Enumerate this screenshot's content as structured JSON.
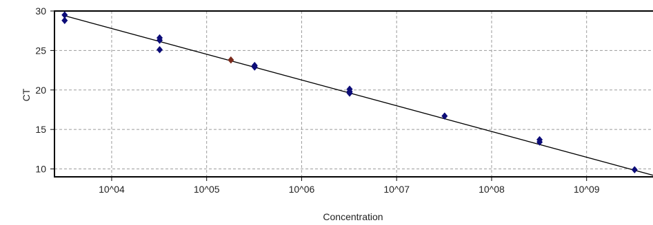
{
  "chart_data": {
    "type": "scatter",
    "xlabel": "Concentration",
    "ylabel": "CT",
    "x_scale": "log10",
    "xlim": [
      2500,
      5000000000
    ],
    "ylim": [
      9,
      30
    ],
    "grid": true,
    "x_ticks": [
      10000,
      100000,
      1000000,
      10000000,
      100000000,
      1000000000
    ],
    "x_tick_labels": [
      "10^04",
      "10^05",
      "10^06",
      "10^07",
      "10^08",
      "10^09"
    ],
    "y_ticks": [
      10,
      15,
      20,
      25,
      30
    ],
    "y_tick_labels": [
      "10",
      "15",
      "20",
      "25",
      "30"
    ],
    "series": [
      {
        "color": "#0c0c78",
        "points": [
          {
            "x": 3200,
            "y": 29.5
          },
          {
            "x": 3200,
            "y": 28.8
          },
          {
            "x": 32000,
            "y": 26.6
          },
          {
            "x": 32000,
            "y": 26.3
          },
          {
            "x": 32000,
            "y": 25.1
          },
          {
            "x": 320000,
            "y": 23.1
          },
          {
            "x": 320000,
            "y": 22.9
          },
          {
            "x": 3200000,
            "y": 20.1
          },
          {
            "x": 3200000,
            "y": 19.8
          },
          {
            "x": 3200000,
            "y": 19.6
          },
          {
            "x": 32000000,
            "y": 16.7
          },
          {
            "x": 320000000,
            "y": 13.7
          },
          {
            "x": 320000000,
            "y": 13.4
          },
          {
            "x": 3200000000,
            "y": 9.9
          }
        ]
      },
      {
        "color": "#7a2a1c",
        "points": [
          {
            "x": 180000,
            "y": 23.8
          }
        ]
      }
    ],
    "fit_line": {
      "color": "#000000",
      "points": [
        {
          "x": 3200,
          "y": 29.4
        },
        {
          "x": 5000000000,
          "y": 9.2
        }
      ]
    }
  }
}
